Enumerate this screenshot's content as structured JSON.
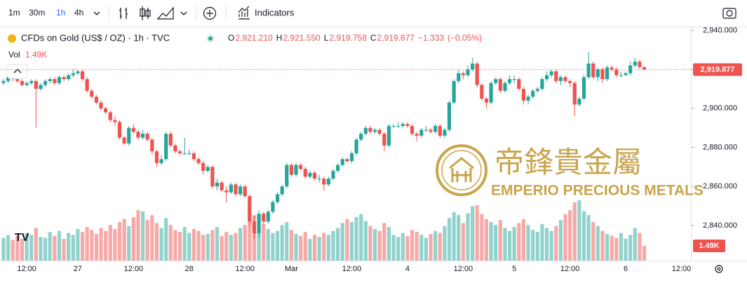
{
  "chart_data": {
    "type": "candlestick",
    "toolbar": {
      "intervals": [
        "1m",
        "30m",
        "1h",
        "4h"
      ],
      "indicators": "Indicators"
    },
    "title": "CFDs on Gold (US$ / OZ) · 1h · TVC",
    "ohlc_legend": [
      {
        "label": "O",
        "text": "2,921.210"
      },
      {
        "label": "H",
        "text": "2,921.550"
      },
      {
        "label": "L",
        "text": "2,919.758"
      },
      {
        "label": "C",
        "text": "2,919.877"
      }
    ],
    "change": "−1.333",
    "change_pct": "(−0.05%)",
    "volume_title": "Vol",
    "volume_label": "1.49K",
    "last_price_label": "2,919.877",
    "watermark": {
      "cn": "帝鋒貴金屬",
      "en": "EMPERIO PRECIOUS METALS"
    },
    "colors": {
      "up": "#26a69a",
      "down": "#ef5350"
    },
    "ylim": [
      2822,
      2943
    ],
    "yticks": [
      {
        "value": 2840,
        "label": "2,840.000"
      },
      {
        "value": 2860,
        "label": "2,860.000"
      },
      {
        "value": 2880,
        "label": "2,880.000"
      },
      {
        "value": 2900,
        "label": "2,900.000"
      },
      {
        "value": 2920,
        "label": "2,920.000"
      },
      {
        "value": 2940,
        "label": "2,940.000"
      }
    ],
    "categories": [
      null,
      null,
      null,
      null,
      null,
      "12:00",
      null,
      null,
      null,
      null,
      null,
      null,
      null,
      null,
      null,
      null,
      "27",
      null,
      null,
      null,
      null,
      null,
      null,
      null,
      null,
      null,
      null,
      null,
      "12:00",
      null,
      null,
      null,
      null,
      null,
      null,
      null,
      null,
      null,
      null,
      null,
      "28",
      null,
      null,
      null,
      null,
      null,
      null,
      null,
      null,
      null,
      null,
      null,
      "12:00",
      null,
      null,
      null,
      null,
      null,
      null,
      null,
      null,
      null,
      "Mar",
      null,
      null,
      null,
      null,
      null,
      null,
      null,
      null,
      null,
      null,
      null,
      null,
      "12:00",
      null,
      null,
      null,
      null,
      null,
      null,
      null,
      null,
      null,
      null,
      null,
      "4",
      null,
      null,
      null,
      null,
      null,
      null,
      null,
      null,
      null,
      null,
      null,
      "12:00",
      null,
      null,
      null,
      null,
      null,
      null,
      null,
      null,
      null,
      null,
      "5",
      null,
      null,
      null,
      null,
      null,
      null,
      null,
      null,
      null,
      null,
      null,
      "12:00",
      null,
      null,
      null,
      null,
      null,
      null,
      null,
      null,
      null,
      null,
      null,
      "6",
      null,
      null,
      null,
      null,
      null,
      null,
      null,
      null,
      null,
      null,
      null,
      "12:00",
      null
    ],
    "open": [
      2913,
      2914,
      2916,
      2915,
      2914,
      2912,
      2913,
      2914,
      2910,
      2912,
      2914,
      2915,
      2913,
      2916,
      2915,
      2917,
      2918,
      2919,
      2915,
      2909,
      2906,
      2903,
      2900,
      2898,
      2894,
      2893,
      2885,
      2882,
      2890,
      2888,
      2885,
      2887,
      2884,
      2878,
      2872,
      2874,
      2887,
      2881,
      2878,
      2877,
      2877,
      2877,
      2874,
      2872,
      2868,
      2870,
      2860,
      2862,
      2858,
      2857,
      2861,
      2856,
      2860,
      2855,
      2842,
      2836,
      2846,
      2842,
      2847,
      2852,
      2856,
      2860,
      2871,
      2866,
      2871,
      2869,
      2865,
      2867,
      2864,
      2864,
      2861,
      2864,
      2868,
      2871,
      2874,
      2873,
      2877,
      2884,
      2887,
      2890,
      2888,
      2889,
      2887,
      2881,
      2891,
      2891,
      2891,
      2892,
      2891,
      2887,
      2886,
      2889,
      2889,
      2888,
      2891,
      2886,
      2889,
      2903,
      2914,
      2918,
      2917,
      2920,
      2923,
      2912,
      2905,
      2903,
      2913,
      2915,
      2909,
      2913,
      2915,
      2915,
      2910,
      2904,
      2906,
      2909,
      2910,
      2915,
      2917,
      2919,
      2914,
      2916,
      2914,
      2913,
      2902,
      2905,
      2916,
      2923,
      2916,
      2920,
      2915,
      2921,
      2920,
      2917,
      2917,
      2918,
      2922,
      2924,
      2921.21,
      null,
      null,
      null,
      null,
      null,
      null,
      null,
      null,
      null
    ],
    "high": [
      2915,
      2917,
      2917,
      2916,
      2915,
      2914,
      2915,
      2915,
      2913,
      2915,
      2916,
      2916,
      2917,
      2917,
      2918,
      2920,
      2920,
      2920,
      2916,
      2910,
      2907,
      2904,
      2901,
      2899,
      2896,
      2894,
      2886,
      2891,
      2892,
      2889,
      2889,
      2888,
      2885,
      2879,
      2876,
      2888,
      2888,
      2882,
      2879,
      2885,
      2879,
      2878,
      2875,
      2873,
      2871,
      2871,
      2864,
      2863,
      2860,
      2862,
      2862,
      2861,
      2861,
      2856,
      2845,
      2848,
      2847,
      2848,
      2853,
      2857,
      2861,
      2872,
      2872,
      2872,
      2872,
      2870,
      2868,
      2868,
      2866,
      2865,
      2865,
      2869,
      2872,
      2875,
      2875,
      2878,
      2885,
      2888,
      2891,
      2891,
      2890,
      2890,
      2888,
      2892,
      2892,
      2893,
      2893,
      2893,
      2892,
      2888,
      2890,
      2891,
      2890,
      2892,
      2892,
      2890,
      2904,
      2915,
      2920,
      2919,
      2922,
      2926,
      2924,
      2913,
      2906,
      2914,
      2916,
      2916,
      2914,
      2917,
      2917,
      2916,
      2911,
      2907,
      2910,
      2911,
      2916,
      2919,
      2920,
      2920,
      2917,
      2917,
      2915,
      2914,
      2906,
      2917,
      2929,
      2924,
      2921,
      2921,
      2922,
      2922,
      2921,
      2919,
      2919,
      2924,
      2926,
      2925,
      2921.55,
      null,
      null,
      null,
      null,
      null,
      null,
      null,
      null,
      null
    ],
    "low": [
      2912,
      2913,
      2914,
      2913,
      2911,
      2911,
      2912,
      2890,
      2909,
      2911,
      2913,
      2912,
      2912,
      2914,
      2914,
      2916,
      2917,
      2914,
      2908,
      2905,
      2902,
      2899,
      2897,
      2893,
      2891,
      2884,
      2881,
      2881,
      2887,
      2884,
      2884,
      2883,
      2876,
      2870,
      2871,
      2873,
      2880,
      2877,
      2876,
      2876,
      2876,
      2873,
      2871,
      2866,
      2867,
      2859,
      2858,
      2857,
      2852,
      2856,
      2855,
      2855,
      2854,
      2840,
      2833,
      2834,
      2840,
      2841,
      2846,
      2851,
      2855,
      2859,
      2865,
      2865,
      2868,
      2864,
      2864,
      2863,
      2862,
      2858,
      2860,
      2863,
      2867,
      2870,
      2872,
      2872,
      2876,
      2883,
      2886,
      2887,
      2887,
      2886,
      2878,
      2880,
      2890,
      2890,
      2890,
      2890,
      2886,
      2883,
      2885,
      2888,
      2887,
      2887,
      2885,
      2885,
      2888,
      2902,
      2913,
      2915,
      2916,
      2919,
      2911,
      2904,
      2900,
      2902,
      2912,
      2908,
      2908,
      2912,
      2913,
      2909,
      2902,
      2902,
      2905,
      2908,
      2909,
      2914,
      2916,
      2913,
      2912,
      2913,
      2911,
      2896,
      2901,
      2904,
      2915,
      2915,
      2914,
      2913,
      2914,
      2919,
      2916,
      2916,
      2917,
      2917,
      2921,
      2920,
      2919.758,
      null,
      null,
      null,
      null,
      null,
      null,
      null,
      null,
      null
    ],
    "close": [
      2914,
      2916,
      2915,
      2914,
      2912,
      2913,
      2914,
      2910,
      2912,
      2914,
      2915,
      2913,
      2916,
      2915,
      2917,
      2918,
      2919,
      2915,
      2909,
      2906,
      2903,
      2900,
      2898,
      2894,
      2893,
      2885,
      2882,
      2890,
      2888,
      2885,
      2887,
      2884,
      2878,
      2872,
      2874,
      2887,
      2881,
      2878,
      2877,
      2877,
      2877,
      2874,
      2872,
      2868,
      2870,
      2860,
      2862,
      2858,
      2857,
      2861,
      2856,
      2860,
      2855,
      2842,
      2836,
      2846,
      2842,
      2847,
      2852,
      2856,
      2860,
      2871,
      2866,
      2871,
      2869,
      2865,
      2867,
      2864,
      2864,
      2861,
      2864,
      2868,
      2871,
      2874,
      2873,
      2877,
      2884,
      2887,
      2890,
      2888,
      2889,
      2887,
      2881,
      2891,
      2891,
      2891,
      2892,
      2891,
      2887,
      2886,
      2889,
      2889,
      2888,
      2891,
      2886,
      2889,
      2903,
      2914,
      2918,
      2917,
      2920,
      2923,
      2912,
      2905,
      2903,
      2913,
      2915,
      2909,
      2913,
      2915,
      2915,
      2910,
      2904,
      2906,
      2909,
      2910,
      2915,
      2917,
      2919,
      2914,
      2916,
      2914,
      2913,
      2902,
      2905,
      2916,
      2923,
      2916,
      2920,
      2915,
      2921,
      2920,
      2917,
      2917,
      2918,
      2922,
      2924,
      2921.21,
      2919.877,
      null,
      null,
      null,
      null,
      null,
      null,
      null,
      null,
      null
    ],
    "volume": [
      2300,
      2600,
      2100,
      2500,
      2200,
      2800,
      2600,
      3300,
      2400,
      2300,
      2900,
      2500,
      3000,
      2200,
      2800,
      2600,
      3200,
      2900,
      3400,
      3100,
      2700,
      3300,
      3000,
      3600,
      3200,
      3900,
      4200,
      3500,
      4400,
      5100,
      5000,
      4100,
      4600,
      3800,
      3300,
      4300,
      3600,
      3100,
      2900,
      3400,
      2800,
      3200,
      3000,
      2600,
      2700,
      3100,
      3400,
      2500,
      2900,
      2600,
      2800,
      3300,
      3600,
      4900,
      4600,
      4500,
      3700,
      3200,
      2800,
      3000,
      3600,
      3900,
      3100,
      2700,
      2500,
      2900,
      2200,
      2600,
      2400,
      2800,
      2600,
      3000,
      3300,
      3800,
      4200,
      3900,
      4400,
      4700,
      4000,
      3500,
      3200,
      3000,
      3800,
      3400,
      2600,
      2400,
      2800,
      2500,
      3100,
      2900,
      2600,
      2300,
      2700,
      3000,
      2800,
      3500,
      4300,
      4900,
      4600,
      3800,
      4800,
      5500,
      5600,
      4700,
      4200,
      3900,
      3600,
      4100,
      3300,
      3000,
      3400,
      3800,
      4200,
      3600,
      3100,
      2900,
      3700,
      3300,
      3000,
      3500,
      4100,
      4700,
      5100,
      5900,
      6100,
      5000,
      4600,
      3900,
      3500,
      3000,
      2700,
      2500,
      2300,
      2800,
      2200,
      2600,
      3300,
      2800,
      1490,
      null,
      null,
      null,
      null,
      null,
      null,
      null,
      null,
      null
    ]
  }
}
